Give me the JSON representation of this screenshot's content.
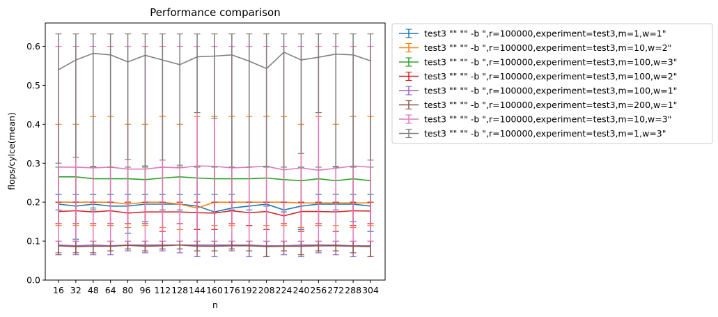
{
  "chart_data": {
    "type": "line",
    "title": "Performance comparison",
    "xlabel": "n",
    "ylabel": "flops/cylce(mean)",
    "ylim": [
      0,
      0.66
    ],
    "yticks": [
      0.0,
      0.1,
      0.2,
      0.3,
      0.4,
      0.5,
      0.6
    ],
    "ytick_labels": [
      "0.0",
      "0.1",
      "0.2",
      "0.3",
      "0.4",
      "0.5",
      "0.6"
    ],
    "x": [
      16,
      32,
      48,
      64,
      80,
      96,
      112,
      128,
      144,
      160,
      176,
      192,
      208,
      224,
      240,
      256,
      272,
      288,
      304
    ],
    "xtick_labels": [
      "16",
      "32",
      "48",
      "64",
      "80",
      "96",
      "112",
      "128",
      "144",
      "160",
      "176",
      "192",
      "208",
      "224",
      "240",
      "256",
      "272",
      "288",
      "304"
    ],
    "grid": false,
    "legend_position": "outside-right",
    "series": [
      {
        "name": "test3 \"\"  \"\" -b \",r=100000,experiment=test3,m=1,w=1\"",
        "color": "#1f77b4",
        "values": [
          0.195,
          0.19,
          0.195,
          0.19,
          0.19,
          0.195,
          0.195,
          0.195,
          0.19,
          0.175,
          0.185,
          0.19,
          0.195,
          0.18,
          0.19,
          0.195,
          0.195,
          0.195,
          0.19
        ],
        "err_low": [
          0.18,
          0.105,
          0.18,
          0.14,
          0.12,
          0.15,
          0.18,
          0.18,
          0.1,
          0.1,
          0.18,
          0.18,
          0.19,
          0.175,
          0.13,
          0.14,
          0.18,
          0.15,
          0.125
        ],
        "err_high": [
          0.22,
          0.22,
          0.22,
          0.22,
          0.22,
          0.22,
          0.22,
          0.22,
          0.22,
          0.22,
          0.22,
          0.2,
          0.2,
          0.2,
          0.2,
          0.22,
          0.22,
          0.22,
          0.22
        ]
      },
      {
        "name": "test3 \"\"  \"\" -b \",r=100000,experiment=test3,m=10,w=2\"",
        "color": "#ff7f0e",
        "values": [
          0.2,
          0.2,
          0.2,
          0.2,
          0.195,
          0.2,
          0.2,
          0.195,
          0.185,
          0.2,
          0.2,
          0.2,
          0.2,
          0.2,
          0.198,
          0.198,
          0.198,
          0.198,
          0.198
        ],
        "err_low": [
          0.14,
          0.14,
          0.14,
          0.14,
          0.135,
          0.14,
          0.135,
          0.13,
          0.13,
          0.14,
          0.14,
          0.14,
          0.14,
          0.14,
          0.135,
          0.14,
          0.14,
          0.135,
          0.14
        ],
        "err_high": [
          0.4,
          0.4,
          0.42,
          0.42,
          0.4,
          0.4,
          0.42,
          0.4,
          0.42,
          0.42,
          0.42,
          0.42,
          0.42,
          0.42,
          0.4,
          0.42,
          0.4,
          0.42,
          0.42
        ]
      },
      {
        "name": "test3 \"\"  \"\" -b \",r=100000,experiment=test3,m=100,w=3\"",
        "color": "#2ca02c",
        "values": [
          0.265,
          0.265,
          0.26,
          0.26,
          0.26,
          0.258,
          0.262,
          0.265,
          0.262,
          0.26,
          0.26,
          0.26,
          0.262,
          0.258,
          0.255,
          0.26,
          0.255,
          0.26,
          0.255
        ],
        "err_low": [
          0.2,
          0.2,
          0.185,
          0.2,
          0.2,
          0.2,
          0.2,
          0.2,
          0.2,
          0.2,
          0.2,
          0.2,
          0.2,
          0.2,
          0.2,
          0.2,
          0.2,
          0.2,
          0.2
        ],
        "err_high": [
          0.29,
          0.29,
          0.29,
          0.29,
          0.29,
          0.29,
          0.29,
          0.29,
          0.29,
          0.29,
          0.29,
          0.29,
          0.29,
          0.29,
          0.29,
          0.29,
          0.29,
          0.29,
          0.29
        ]
      },
      {
        "name": "test3 \"\"  \"\" -b \",r=100000,experiment=test3,m=100,w=2\"",
        "color": "#d62728",
        "values": [
          0.176,
          0.178,
          0.175,
          0.178,
          0.172,
          0.175,
          0.175,
          0.175,
          0.173,
          0.172,
          0.178,
          0.173,
          0.176,
          0.165,
          0.176,
          0.176,
          0.175,
          0.178,
          0.177
        ],
        "err_low": [
          0.145,
          0.145,
          0.145,
          0.145,
          0.145,
          0.145,
          0.125,
          0.145,
          0.13,
          0.13,
          0.145,
          0.14,
          0.13,
          0.145,
          0.125,
          0.145,
          0.125,
          0.14,
          0.145
        ],
        "err_high": [
          0.2,
          0.2,
          0.2,
          0.2,
          0.2,
          0.2,
          0.2,
          0.2,
          0.2,
          0.2,
          0.2,
          0.2,
          0.2,
          0.2,
          0.2,
          0.2,
          0.2,
          0.2,
          0.2
        ]
      },
      {
        "name": "test3 \"\"  \"\" -b \",r=100000,experiment=test3,m=100,w=1\"",
        "color": "#9467bd",
        "values": [
          0.09,
          0.088,
          0.09,
          0.088,
          0.09,
          0.09,
          0.09,
          0.09,
          0.09,
          0.09,
          0.09,
          0.09,
          0.088,
          0.088,
          0.09,
          0.09,
          0.09,
          0.088,
          0.088
        ],
        "err_low": [
          0.07,
          0.065,
          0.065,
          0.065,
          0.075,
          0.07,
          0.075,
          0.07,
          0.06,
          0.06,
          0.075,
          0.06,
          0.06,
          0.065,
          0.06,
          0.07,
          0.065,
          0.06,
          0.06
        ],
        "err_high": [
          0.1,
          0.1,
          0.1,
          0.1,
          0.1,
          0.1,
          0.1,
          0.1,
          0.1,
          0.1,
          0.1,
          0.1,
          0.1,
          0.1,
          0.1,
          0.1,
          0.1,
          0.1,
          0.1
        ]
      },
      {
        "name": "test3 \"\"  \"\" -b \",r=100000,experiment=test3,m=200,w=1\"",
        "color": "#8c564b",
        "values": [
          0.088,
          0.086,
          0.087,
          0.087,
          0.089,
          0.087,
          0.088,
          0.09,
          0.087,
          0.087,
          0.088,
          0.088,
          0.086,
          0.087,
          0.087,
          0.088,
          0.088,
          0.087,
          0.086
        ],
        "err_low": [
          0.065,
          0.07,
          0.07,
          0.075,
          0.08,
          0.075,
          0.08,
          0.08,
          0.075,
          0.075,
          0.08,
          0.075,
          0.06,
          0.075,
          0.065,
          0.075,
          0.075,
          0.07,
          0.06
        ],
        "err_high": [
          0.1,
          0.1,
          0.1,
          0.1,
          0.1,
          0.1,
          0.1,
          0.1,
          0.1,
          0.1,
          0.1,
          0.1,
          0.1,
          0.1,
          0.1,
          0.1,
          0.1,
          0.1,
          0.1
        ]
      },
      {
        "name": "test3 \"\"  \"\" -b \",r=100000,experiment=test3,m=10,w=3\"",
        "color": "#e377c2",
        "values": [
          0.29,
          0.29,
          0.288,
          0.29,
          0.285,
          0.285,
          0.29,
          0.288,
          0.293,
          0.292,
          0.288,
          0.29,
          0.292,
          0.283,
          0.288,
          0.282,
          0.287,
          0.293,
          0.29
        ],
        "err_low": [
          0.1,
          0.1,
          0.1,
          0.1,
          0.1,
          0.1,
          0.1,
          0.1,
          0.1,
          0.1,
          0.1,
          0.1,
          0.1,
          0.1,
          0.1,
          0.1,
          0.1,
          0.1,
          0.1
        ],
        "err_high": [
          0.6,
          0.6,
          0.6,
          0.6,
          0.6,
          0.6,
          0.6,
          0.6,
          0.6,
          0.6,
          0.6,
          0.6,
          0.6,
          0.6,
          0.6,
          0.6,
          0.6,
          0.6,
          0.6
        ]
      },
      {
        "name": "test3 \"\"  \"\" -b \",r=100000,experiment=test3,m=1,w=3\"",
        "color": "#7f7f7f",
        "values": [
          0.54,
          0.565,
          0.582,
          0.578,
          0.56,
          0.577,
          0.565,
          0.553,
          0.573,
          0.575,
          0.578,
          0.562,
          0.543,
          0.585,
          0.565,
          0.572,
          0.58,
          0.578,
          0.563
        ],
        "err_low": [
          0.3,
          0.315,
          0.292,
          0.29,
          0.31,
          0.293,
          0.308,
          0.295,
          0.43,
          0.415,
          0.29,
          0.29,
          0.292,
          0.29,
          0.325,
          0.43,
          0.292,
          0.29,
          0.308
        ],
        "err_high": [
          0.632,
          0.632,
          0.632,
          0.632,
          0.632,
          0.632,
          0.632,
          0.632,
          0.632,
          0.632,
          0.632,
          0.632,
          0.632,
          0.632,
          0.632,
          0.632,
          0.632,
          0.632,
          0.632
        ]
      }
    ]
  }
}
